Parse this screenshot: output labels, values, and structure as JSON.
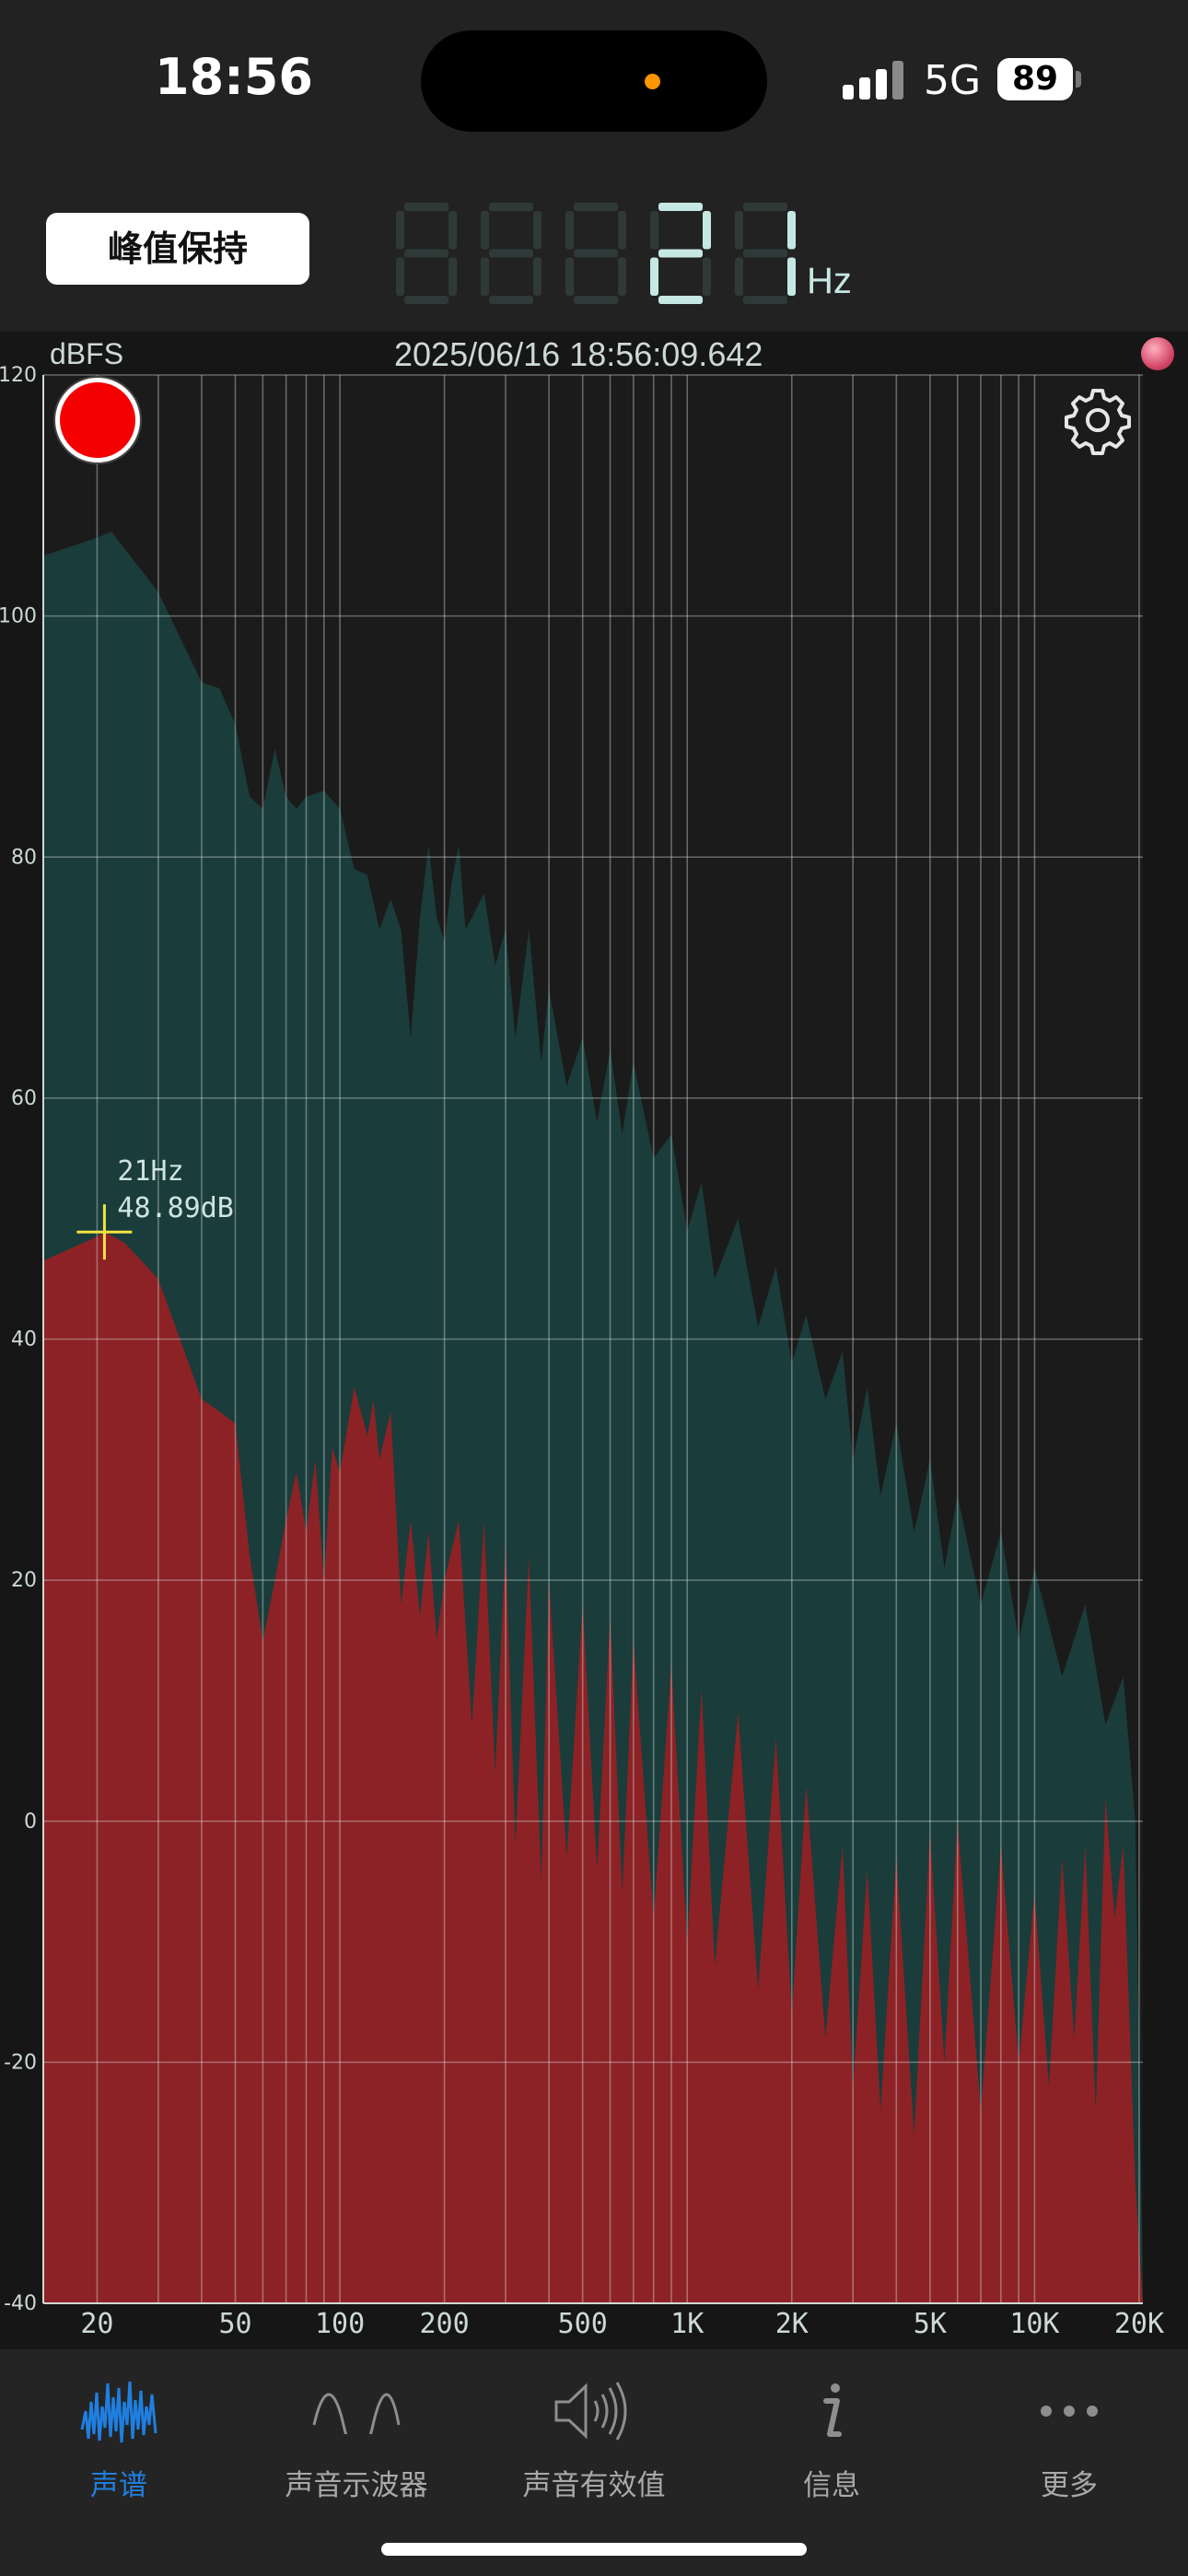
{
  "status_bar": {
    "time": "18:56",
    "network": "5G",
    "battery": "89",
    "island_dot_color": "#ff9500"
  },
  "header": {
    "peak_hold_label": "峰值保持",
    "frequency_digits": "21",
    "frequency_unit": "Hz",
    "digit_active_color": "#c6e8e2",
    "digit_ghost_color": "#2f3a38"
  },
  "chart_header": {
    "unit": "dBFS",
    "timestamp": "2025/06/16 18:56:09.642"
  },
  "chart_data": {
    "type": "area",
    "xscale": "log",
    "xlim": [
      14,
      20500
    ],
    "ylim": [
      -40,
      120
    ],
    "grid": true,
    "yticks": [
      120,
      100,
      80,
      60,
      40,
      20,
      0,
      -20,
      -40
    ],
    "xtick_labels": [
      {
        "value": 20,
        "label": "20"
      },
      {
        "value": 50,
        "label": "50"
      },
      {
        "value": 100,
        "label": "100"
      },
      {
        "value": 200,
        "label": "200"
      },
      {
        "value": 500,
        "label": "500"
      },
      {
        "value": 1000,
        "label": "1K"
      },
      {
        "value": 2000,
        "label": "2K"
      },
      {
        "value": 5000,
        "label": "5K"
      },
      {
        "value": 10000,
        "label": "10K"
      },
      {
        "value": 20000,
        "label": "20K"
      }
    ],
    "minor_grid_x": [
      20,
      30,
      40,
      50,
      60,
      70,
      80,
      90,
      100,
      200,
      300,
      400,
      500,
      600,
      700,
      800,
      900,
      1000,
      2000,
      3000,
      4000,
      5000,
      6000,
      7000,
      8000,
      9000,
      10000,
      20000
    ],
    "series": [
      {
        "role": "peak-hold",
        "color": "#1a3c3a",
        "points": [
          [
            14,
            105
          ],
          [
            20,
            106.5
          ],
          [
            22,
            107
          ],
          [
            30,
            102
          ],
          [
            40,
            94.5
          ],
          [
            45,
            94
          ],
          [
            50,
            91
          ],
          [
            55,
            85
          ],
          [
            60,
            84
          ],
          [
            65,
            89
          ],
          [
            70,
            85
          ],
          [
            75,
            84
          ],
          [
            80,
            85
          ],
          [
            90,
            85.5
          ],
          [
            100,
            84
          ],
          [
            110,
            79
          ],
          [
            120,
            78.5
          ],
          [
            130,
            74
          ],
          [
            140,
            76.5
          ],
          [
            150,
            74
          ],
          [
            160,
            65
          ],
          [
            170,
            75
          ],
          [
            180,
            81
          ],
          [
            190,
            75
          ],
          [
            200,
            73
          ],
          [
            210,
            78
          ],
          [
            220,
            81
          ],
          [
            230,
            74
          ],
          [
            240,
            75
          ],
          [
            260,
            77
          ],
          [
            280,
            71
          ],
          [
            300,
            74
          ],
          [
            320,
            65
          ],
          [
            350,
            74
          ],
          [
            380,
            63
          ],
          [
            400,
            69
          ],
          [
            450,
            61
          ],
          [
            500,
            65
          ],
          [
            550,
            58
          ],
          [
            600,
            64
          ],
          [
            650,
            57
          ],
          [
            700,
            63
          ],
          [
            800,
            55
          ],
          [
            900,
            57
          ],
          [
            1000,
            49
          ],
          [
            1100,
            53
          ],
          [
            1200,
            45
          ],
          [
            1400,
            50
          ],
          [
            1600,
            41
          ],
          [
            1800,
            46
          ],
          [
            2000,
            38
          ],
          [
            2200,
            42
          ],
          [
            2500,
            35
          ],
          [
            2800,
            39
          ],
          [
            3000,
            30
          ],
          [
            3300,
            36
          ],
          [
            3600,
            27
          ],
          [
            4000,
            33
          ],
          [
            4500,
            24
          ],
          [
            5000,
            30
          ],
          [
            5500,
            21
          ],
          [
            6000,
            27
          ],
          [
            7000,
            18
          ],
          [
            8000,
            24
          ],
          [
            9000,
            15
          ],
          [
            10000,
            21
          ],
          [
            12000,
            12
          ],
          [
            14000,
            18
          ],
          [
            16000,
            8
          ],
          [
            18000,
            12
          ],
          [
            19500,
            0
          ],
          [
            20500,
            -39
          ]
        ]
      },
      {
        "role": "live-spectrum",
        "color": "#8c2226",
        "points": [
          [
            14,
            46.5
          ],
          [
            20,
            48.5
          ],
          [
            21,
            48.9
          ],
          [
            24,
            48
          ],
          [
            30,
            45
          ],
          [
            40,
            35
          ],
          [
            45,
            34
          ],
          [
            50,
            33
          ],
          [
            55,
            22
          ],
          [
            60,
            15
          ],
          [
            65,
            20
          ],
          [
            70,
            25
          ],
          [
            75,
            29
          ],
          [
            80,
            24
          ],
          [
            85,
            30
          ],
          [
            90,
            20
          ],
          [
            95,
            31
          ],
          [
            100,
            29
          ],
          [
            110,
            36
          ],
          [
            120,
            32
          ],
          [
            125,
            35
          ],
          [
            130,
            30
          ],
          [
            140,
            34
          ],
          [
            150,
            18
          ],
          [
            160,
            25
          ],
          [
            170,
            17
          ],
          [
            180,
            24
          ],
          [
            190,
            15
          ],
          [
            200,
            20
          ],
          [
            220,
            25
          ],
          [
            240,
            8
          ],
          [
            260,
            25
          ],
          [
            280,
            4
          ],
          [
            300,
            23
          ],
          [
            320,
            -2
          ],
          [
            350,
            22
          ],
          [
            380,
            -5
          ],
          [
            400,
            20
          ],
          [
            450,
            -3
          ],
          [
            500,
            18
          ],
          [
            550,
            -4
          ],
          [
            600,
            17
          ],
          [
            650,
            -6
          ],
          [
            700,
            15
          ],
          [
            800,
            -8
          ],
          [
            900,
            13
          ],
          [
            1000,
            -10
          ],
          [
            1100,
            11
          ],
          [
            1200,
            -12
          ],
          [
            1400,
            9
          ],
          [
            1600,
            -14
          ],
          [
            1800,
            7
          ],
          [
            2000,
            -16
          ],
          [
            2200,
            3
          ],
          [
            2500,
            -18
          ],
          [
            2800,
            -2
          ],
          [
            3000,
            -22
          ],
          [
            3300,
            -4
          ],
          [
            3600,
            -24
          ],
          [
            4000,
            -3
          ],
          [
            4500,
            -26
          ],
          [
            5000,
            -1
          ],
          [
            5500,
            -20
          ],
          [
            6000,
            0
          ],
          [
            7000,
            -24
          ],
          [
            8000,
            -2
          ],
          [
            9000,
            -20
          ],
          [
            10000,
            -6
          ],
          [
            11000,
            -22
          ],
          [
            12000,
            -3
          ],
          [
            13000,
            -18
          ],
          [
            14000,
            -2
          ],
          [
            15000,
            -24
          ],
          [
            16000,
            2
          ],
          [
            17000,
            -8
          ],
          [
            18000,
            -2
          ],
          [
            19500,
            -30
          ],
          [
            20500,
            -40
          ]
        ]
      }
    ],
    "cursor": {
      "x": 21,
      "y": 48.89,
      "label_freq": "21Hz",
      "label_db": "48.89dB",
      "color": "#f0e442"
    }
  },
  "icons": {
    "record": "record-icon",
    "settings": "gear-icon",
    "indicator": "status-dot-icon"
  },
  "tabs": [
    {
      "label": "声谱",
      "icon": "spectrum-icon",
      "active": true
    },
    {
      "label": "声音示波器",
      "icon": "waveform-icon",
      "active": false
    },
    {
      "label": "声音有效值",
      "icon": "speaker-icon",
      "active": false
    },
    {
      "label": "信息",
      "icon": "info-icon",
      "active": false
    },
    {
      "label": "更多",
      "icon": "more-icon",
      "active": false
    }
  ]
}
